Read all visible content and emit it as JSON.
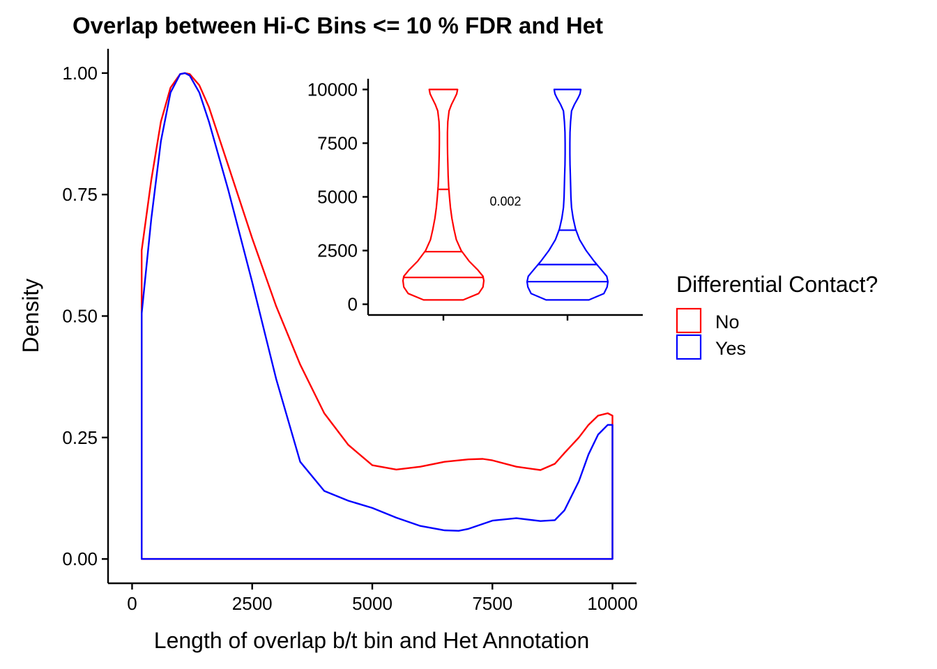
{
  "chart_data": [
    {
      "type": "line",
      "subtype": "density",
      "title": "Overlap between Hi-C Bins <= 10 % FDR and Het",
      "xlabel": "Length of overlap b/t bin and Het Annotation",
      "ylabel": "Density",
      "xlim": [
        -500,
        10500
      ],
      "ylim": [
        -0.05,
        1.05
      ],
      "xticks": [
        0,
        2500,
        5000,
        7500,
        10000
      ],
      "xtick_labels": [
        "0",
        "2500",
        "5000",
        "7500",
        "10000"
      ],
      "yticks": [
        0,
        0.25,
        0.5,
        0.75,
        1.0
      ],
      "ytick_labels": [
        "0.00",
        "0.25",
        "0.50",
        "0.75",
        "1.00"
      ],
      "grid": false,
      "legend": {
        "title": "Differential Contact?",
        "position": "right",
        "entries": [
          "No",
          "Yes"
        ]
      },
      "series": [
        {
          "name": "No",
          "color": "#ff0000",
          "x": [
            200,
            400,
            600,
            800,
            1000,
            1100,
            1200,
            1400,
            1600,
            1800,
            2000,
            2500,
            3000,
            3500,
            4000,
            4500,
            5000,
            5500,
            6000,
            6500,
            7000,
            7300,
            7500,
            8000,
            8500,
            8800,
            9000,
            9300,
            9500,
            9700,
            9900,
            10000
          ],
          "y": [
            0.635,
            0.78,
            0.9,
            0.97,
            0.998,
            1.0,
            0.998,
            0.975,
            0.93,
            0.87,
            0.81,
            0.66,
            0.52,
            0.4,
            0.3,
            0.235,
            0.193,
            0.184,
            0.19,
            0.2,
            0.205,
            0.206,
            0.203,
            0.19,
            0.183,
            0.196,
            0.218,
            0.25,
            0.276,
            0.295,
            0.3,
            0.295
          ]
        },
        {
          "name": "Yes",
          "color": "#0000ff",
          "x": [
            200,
            400,
            600,
            800,
            1000,
            1100,
            1200,
            1400,
            1600,
            1800,
            2000,
            2500,
            3000,
            3500,
            4000,
            4500,
            5000,
            5500,
            6000,
            6500,
            6800,
            7000,
            7500,
            8000,
            8500,
            8800,
            9000,
            9300,
            9500,
            9700,
            9900,
            10000
          ],
          "y": [
            0.505,
            0.7,
            0.86,
            0.96,
            0.998,
            1.0,
            0.995,
            0.96,
            0.9,
            0.83,
            0.76,
            0.57,
            0.37,
            0.2,
            0.14,
            0.12,
            0.105,
            0.085,
            0.068,
            0.059,
            0.058,
            0.062,
            0.079,
            0.084,
            0.078,
            0.08,
            0.1,
            0.16,
            0.215,
            0.256,
            0.276,
            0.276
          ]
        }
      ]
    },
    {
      "type": "violin",
      "subtype": "inset",
      "ylim": [
        -500,
        10500
      ],
      "yticks": [
        0,
        2500,
        5000,
        7500,
        10000
      ],
      "ytick_labels": [
        "0",
        "2500",
        "5000",
        "7500",
        "10000"
      ],
      "annotation": "0.002",
      "groups": [
        {
          "name": "No",
          "color": "#ff0000",
          "quantiles": [
            1250,
            2450,
            5350
          ],
          "y": [
            200,
            500,
            800,
            1100,
            1300,
            1600,
            2000,
            2500,
            3000,
            3500,
            4000,
            4500,
            5000,
            5500,
            6000,
            6500,
            7000,
            7500,
            8000,
            8500,
            9000,
            9300,
            9600,
            9800,
            10000
          ],
          "width": [
            0.49,
            0.87,
            0.98,
            1.0,
            0.98,
            0.85,
            0.64,
            0.44,
            0.32,
            0.26,
            0.21,
            0.175,
            0.15,
            0.13,
            0.118,
            0.11,
            0.104,
            0.1,
            0.1,
            0.108,
            0.14,
            0.2,
            0.28,
            0.33,
            0.35
          ]
        },
        {
          "name": "Yes",
          "color": "#0000ff",
          "quantiles": [
            1050,
            1850,
            3450
          ],
          "y": [
            200,
            500,
            800,
            1050,
            1300,
            1600,
            2000,
            2500,
            3000,
            3500,
            4000,
            4500,
            5000,
            5500,
            6000,
            6500,
            7000,
            7500,
            8000,
            8500,
            9000,
            9300,
            9600,
            9800,
            10000
          ],
          "width": [
            0.53,
            0.9,
            0.98,
            1.0,
            0.97,
            0.84,
            0.66,
            0.46,
            0.3,
            0.2,
            0.14,
            0.1,
            0.085,
            0.078,
            0.07,
            0.062,
            0.058,
            0.058,
            0.062,
            0.075,
            0.1,
            0.17,
            0.26,
            0.31,
            0.33
          ]
        }
      ]
    }
  ]
}
